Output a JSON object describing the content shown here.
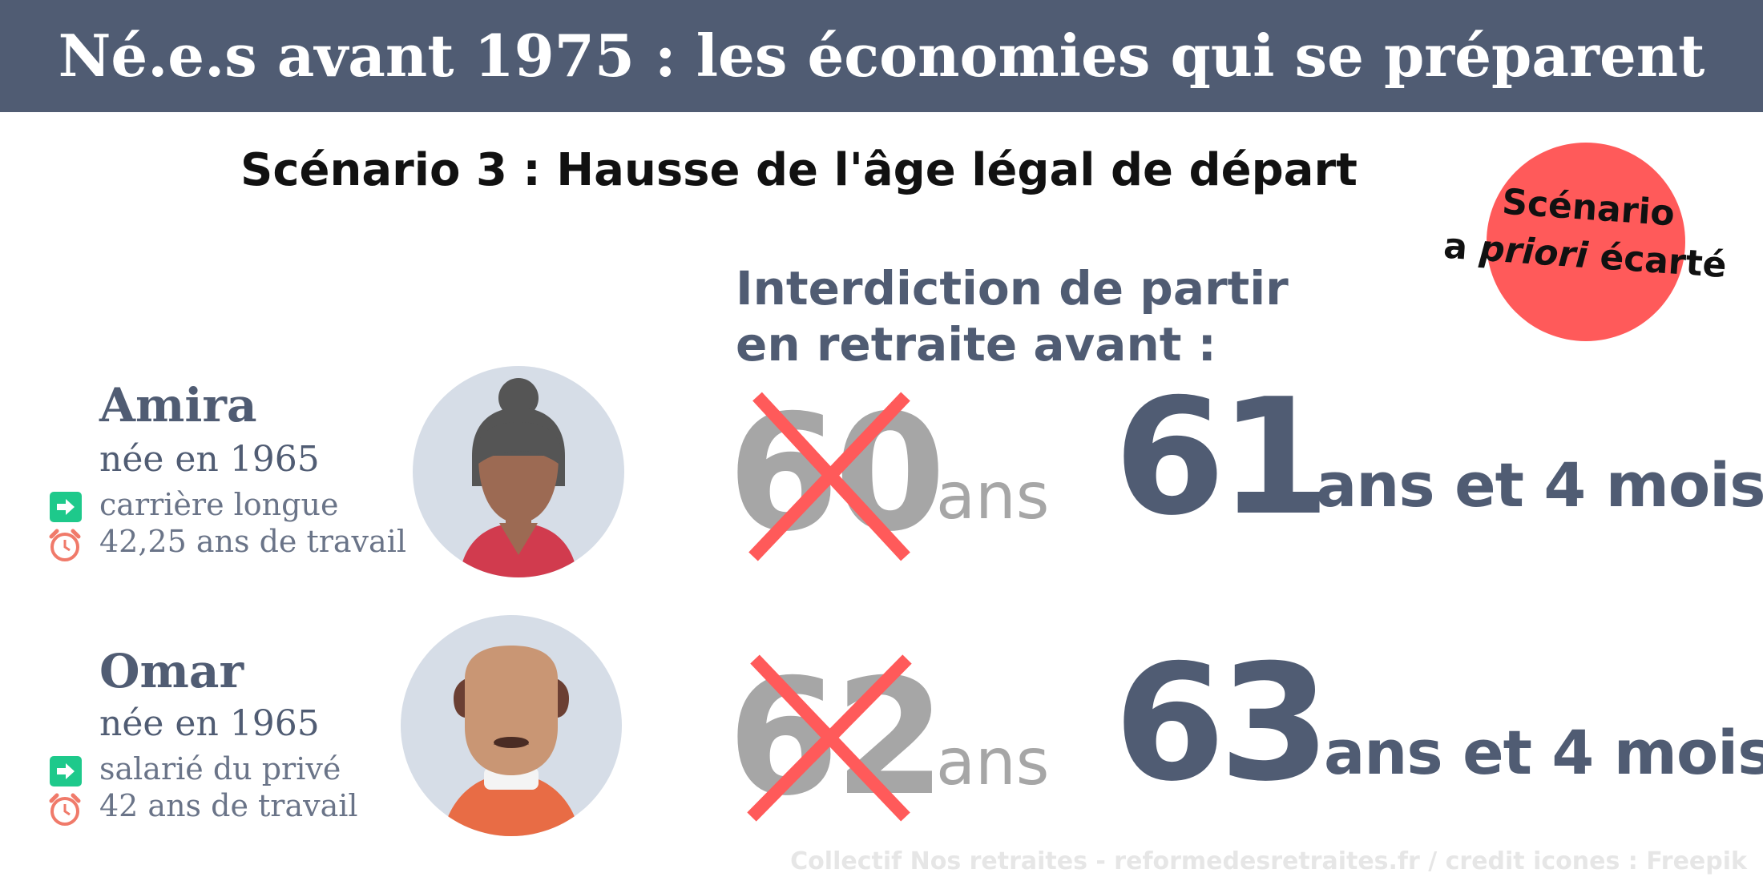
{
  "header": {
    "title": "Né.e.s avant 1975 : les économies qui se préparent"
  },
  "scenario": {
    "title": "Scénario 3 : Hausse de l'âge légal de départ"
  },
  "stamp": {
    "line1": "Scénario",
    "line2_a": "a ",
    "line2_b": "priori",
    "line2_c": " écarté",
    "color": "#ff5a5a"
  },
  "interdiction": {
    "line1": "Interdiction de partir",
    "line2": "en retraite avant :"
  },
  "persons": [
    {
      "name": "Amira",
      "born": "née en 1965",
      "status": "carrière longue",
      "work": "42,25 ans de travail",
      "old_age": "60",
      "old_unit": "ans",
      "new_age": "61",
      "new_unit": "ans et 4 mois",
      "status_icon": "arrow-right-icon",
      "work_icon": "alarm-clock-icon",
      "avatar_icon": "woman-avatar-icon"
    },
    {
      "name": "Omar",
      "born": "née en 1965",
      "status": "salarié du privé",
      "work": "42 ans de travail",
      "old_age": "62",
      "old_unit": "ans",
      "new_age": "63",
      "new_unit": "ans et 4 mois",
      "status_icon": "arrow-right-icon",
      "work_icon": "alarm-clock-icon",
      "avatar_icon": "man-avatar-icon"
    }
  ],
  "credit": "Collectif Nos retraites - reformedesretraites.fr  / credit icones : Freepik",
  "colors": {
    "header": "#505c73",
    "accent_red": "#ff5a5a",
    "icon_green": "#1ec98b",
    "grey": "#a6a6a6"
  }
}
